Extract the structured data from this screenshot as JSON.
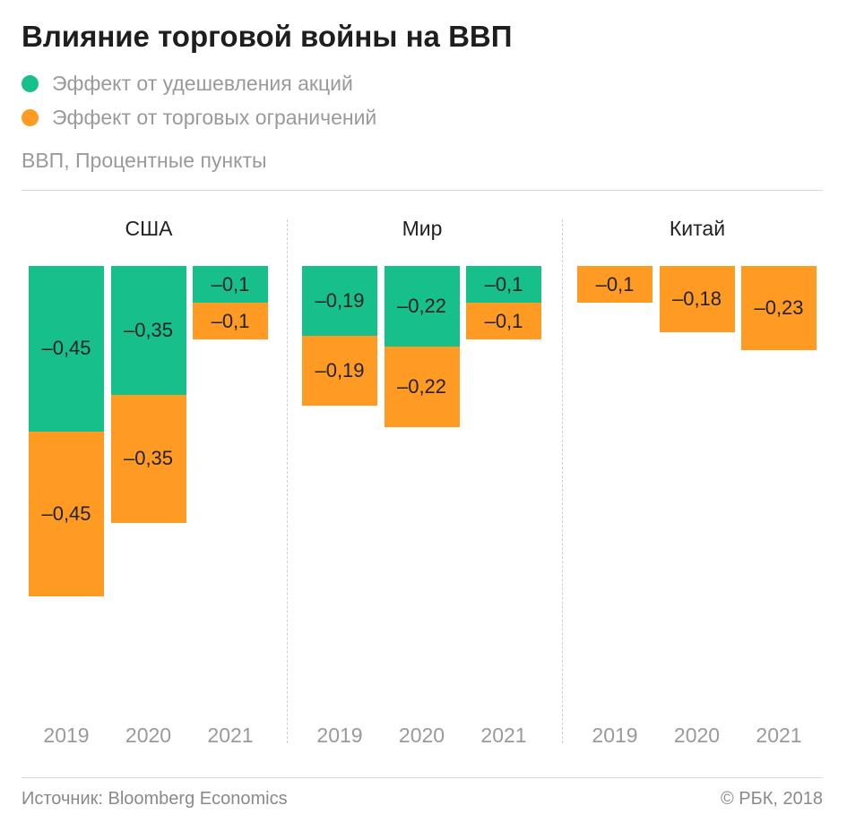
{
  "chart_data": {
    "type": "bar",
    "stacked": true,
    "title": "Влияние торговой войны на ВВП",
    "ylabel": "ВВП, Процентные пункты",
    "legend": [
      {
        "name": "Эффект от удешевления акций",
        "color": "#17bf8b"
      },
      {
        "name": "Эффект от торговых ограничений",
        "color": "#ff9a22"
      }
    ],
    "legend_placement": "top-left",
    "grid": false,
    "panels": [
      {
        "title": "США",
        "categories": [
          "2019",
          "2020",
          "2021"
        ],
        "series": [
          {
            "name": "Эффект от удешевления акций",
            "values": [
              -0.45,
              -0.35,
              -0.1
            ],
            "labels": [
              "–0,45",
              "–0,35",
              "–0,1"
            ]
          },
          {
            "name": "Эффект от торговых ограничений",
            "values": [
              -0.45,
              -0.35,
              -0.1
            ],
            "labels": [
              "–0,45",
              "–0,35",
              "–0,1"
            ]
          }
        ]
      },
      {
        "title": "Мир",
        "categories": [
          "2019",
          "2020",
          "2021"
        ],
        "series": [
          {
            "name": "Эффект от удешевления акций",
            "values": [
              -0.19,
              -0.22,
              -0.1
            ],
            "labels": [
              "–0,19",
              "–0,22",
              "–0,1"
            ]
          },
          {
            "name": "Эффект от торговых ограничений",
            "values": [
              -0.19,
              -0.22,
              -0.1
            ],
            "labels": [
              "–0,19",
              "–0,22",
              "–0,1"
            ]
          }
        ]
      },
      {
        "title": "Китай",
        "categories": [
          "2019",
          "2020",
          "2021"
        ],
        "series": [
          {
            "name": "Эффект от удешевления акций",
            "values": [
              0,
              0,
              0
            ],
            "labels": [
              "",
              "",
              ""
            ]
          },
          {
            "name": "Эффект от торговых ограничений",
            "values": [
              -0.1,
              -0.18,
              -0.23
            ],
            "labels": [
              "–0,1",
              "–0,18",
              "–0,23"
            ]
          }
        ]
      }
    ]
  },
  "footer": {
    "source": "Источник: Bloomberg Economics",
    "copyright": "© РБК, 2018"
  }
}
